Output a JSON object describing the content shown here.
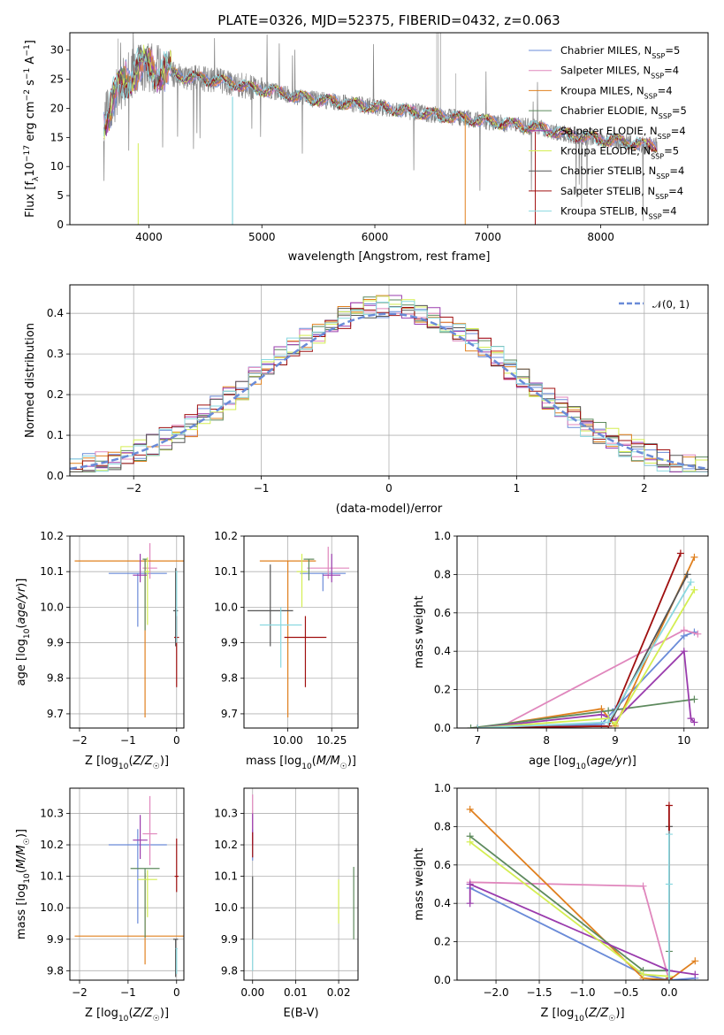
{
  "title": "PLATE=0326, MJD=52375, FIBERID=0432, z=0.063",
  "colors": {
    "chabrier_miles": "#6a8bd8",
    "salpeter_miles": "#e087bd",
    "kroupa_miles": "#e0801f",
    "chabrier_elodie": "#5e8a5e",
    "salpeter_elodie": "#9a3cad",
    "kroupa_elodie": "#d4ee52",
    "chabrier_stelib": "#555555",
    "salpeter_stelib": "#a01010",
    "kroupa_stelib": "#8ad8e0",
    "data": "#808080",
    "gaussian": "#6a8bd8"
  },
  "chart_data": [
    {
      "type": "line",
      "panel": "spectrum",
      "xlabel": "wavelength [Angstrom, rest frame]",
      "ylabel": "Flux [f_λ 10⁻¹⁷ erg cm⁻² s⁻¹ A⁻¹]",
      "xlim": [
        3300,
        8950
      ],
      "ylim": [
        0,
        33
      ],
      "xticks": [
        4000,
        5000,
        6000,
        7000,
        8000
      ],
      "yticks": [
        0,
        5,
        10,
        15,
        20,
        25,
        30
      ],
      "grid": false,
      "legend_position": "top-right",
      "legend": [
        {
          "key": "chabrier_miles",
          "label": "Chabrier MILES, N",
          "sub": "SSP",
          "tail": "=5"
        },
        {
          "key": "salpeter_miles",
          "label": "Salpeter MILES, N",
          "sub": "SSP",
          "tail": "=4"
        },
        {
          "key": "kroupa_miles",
          "label": "Kroupa MILES, N",
          "sub": "SSP",
          "tail": "=4"
        },
        {
          "key": "chabrier_elodie",
          "label": "Chabrier ELODIE, N",
          "sub": "SSP",
          "tail": "=5"
        },
        {
          "key": "salpeter_elodie",
          "label": "Salpeter ELODIE, N",
          "sub": "SSP",
          "tail": "=4"
        },
        {
          "key": "kroupa_elodie",
          "label": "Kroupa ELODIE, N",
          "sub": "SSP",
          "tail": "=5"
        },
        {
          "key": "chabrier_stelib",
          "label": "Chabrier STELIB, N",
          "sub": "SSP",
          "tail": "=4"
        },
        {
          "key": "salpeter_stelib",
          "label": "Salpeter STELIB, N",
          "sub": "SSP",
          "tail": "=4"
        },
        {
          "key": "kroupa_stelib",
          "label": "Kroupa STELIB, N",
          "sub": "SSP",
          "tail": "=4"
        }
      ],
      "continuum": {
        "x": [
          3600,
          3700,
          3800,
          3900,
          4000,
          4100,
          4300,
          4500,
          4700,
          4900,
          5100,
          5300,
          5500,
          5700,
          5900,
          6100,
          6300,
          6500,
          6700,
          6900,
          7100,
          7300,
          7500,
          7700,
          7900,
          8100,
          8300,
          8500
        ],
        "y": [
          18,
          22,
          25,
          27,
          27,
          26.5,
          25.5,
          25,
          24.5,
          23.5,
          23,
          22,
          21.5,
          21,
          20.5,
          20,
          19.5,
          19,
          18.5,
          18,
          17.5,
          17,
          16.5,
          15.5,
          15,
          14.5,
          14,
          13.5
        ]
      }
    },
    {
      "type": "line",
      "panel": "residual_distribution",
      "xlabel": "(data-model)/error",
      "ylabel": "Normed distribution",
      "xlim": [
        -2.5,
        2.5
      ],
      "ylim": [
        0,
        0.47
      ],
      "xticks": [
        -2,
        -1,
        0,
        1,
        2
      ],
      "yticks": [
        0.0,
        0.1,
        0.2,
        0.3,
        0.4
      ],
      "grid": true,
      "legend_position": "top-right",
      "legend_label": "𝒩(0, 1)",
      "bin_width": 0.1
    },
    {
      "type": "scatter",
      "panel": "age_vs_Z",
      "xlabel": "Z [log₁₀(Z/Z☉)]",
      "ylabel": "age [log₁₀(age/yr)]",
      "xlim": [
        -2.2,
        0.15
      ],
      "ylim": [
        9.66,
        10.2
      ],
      "xticks": [
        -2,
        -1,
        0
      ],
      "yticks": [
        9.7,
        9.8,
        9.9,
        10.0,
        10.1,
        10.2
      ],
      "grid": true,
      "points": [
        {
          "key": "chabrier_miles",
          "x": -0.8,
          "y": 10.095,
          "xerr": 0.6,
          "yerr": [
            0.15,
            0.0
          ]
        },
        {
          "key": "salpeter_miles",
          "x": -0.55,
          "y": 10.11,
          "xerr": 0.15,
          "yerr": [
            0.03,
            0.07
          ]
        },
        {
          "key": "kroupa_miles",
          "x": -0.65,
          "y": 10.13,
          "xerr": 1.45,
          "yerr": [
            0.44,
            0.0
          ]
        },
        {
          "key": "chabrier_elodie",
          "x": -0.65,
          "y": 10.135,
          "xerr": 0.05,
          "yerr": [
            0.2,
            0.0
          ]
        },
        {
          "key": "salpeter_elodie",
          "x": -0.75,
          "y": 10.09,
          "xerr": 0.15,
          "yerr": [
            0.02,
            0.06
          ]
        },
        {
          "key": "kroupa_elodie",
          "x": -0.6,
          "y": 10.1,
          "xerr": 0.05,
          "yerr": [
            0.15,
            0.04
          ]
        },
        {
          "key": "chabrier_stelib",
          "x": -0.02,
          "y": 9.99,
          "xerr": 0.05,
          "yerr": [
            0.1,
            0.12
          ]
        },
        {
          "key": "salpeter_stelib",
          "x": 0.0,
          "y": 9.915,
          "xerr": 0.05,
          "yerr": [
            0.14,
            0.06
          ]
        },
        {
          "key": "kroupa_stelib",
          "x": 0.0,
          "y": 10.1,
          "xerr": 0.02,
          "yerr": [
            0.2,
            0.0
          ]
        }
      ]
    },
    {
      "type": "scatter",
      "panel": "age_vs_mass",
      "xlabel": "mass [log₁₀(M/M☉)]",
      "ylabel": "",
      "xlim": [
        9.75,
        10.4
      ],
      "ylim": [
        9.66,
        10.2
      ],
      "xticks": [
        10.0,
        10.25
      ],
      "xticklabels": [
        "10.00",
        "10.25"
      ],
      "yticks": [
        9.7,
        9.8,
        9.9,
        10.0,
        10.1,
        10.2
      ],
      "grid": true,
      "points": [
        {
          "key": "chabrier_miles",
          "x": 10.2,
          "y": 10.095,
          "xerr": 0.13,
          "yerr": [
            0.05,
            0.0
          ]
        },
        {
          "key": "salpeter_miles",
          "x": 10.23,
          "y": 10.11,
          "xerr": 0.12,
          "yerr": [
            0.03,
            0.06
          ]
        },
        {
          "key": "kroupa_miles",
          "x": 10.0,
          "y": 10.13,
          "xerr": 0.16,
          "yerr": [
            0.44,
            0.0
          ]
        },
        {
          "key": "chabrier_elodie",
          "x": 10.12,
          "y": 10.135,
          "xerr": 0.03,
          "yerr": [
            0.06,
            0.0
          ]
        },
        {
          "key": "salpeter_elodie",
          "x": 10.25,
          "y": 10.09,
          "xerr": 0.05,
          "yerr": [
            0.02,
            0.06
          ]
        },
        {
          "key": "kroupa_elodie",
          "x": 10.08,
          "y": 10.1,
          "xerr": 0.03,
          "yerr": [
            0.1,
            0.05
          ]
        },
        {
          "key": "chabrier_stelib",
          "x": 9.9,
          "y": 9.99,
          "xerr": 0.13,
          "yerr": [
            0.1,
            0.13
          ]
        },
        {
          "key": "salpeter_stelib",
          "x": 10.1,
          "y": 9.915,
          "xerr": 0.12,
          "yerr": [
            0.14,
            0.06
          ]
        },
        {
          "key": "kroupa_stelib",
          "x": 9.96,
          "y": 9.95,
          "xerr": 0.12,
          "yerr": [
            0.12,
            0.05
          ]
        }
      ]
    },
    {
      "type": "line",
      "panel": "mass_weight_vs_age",
      "xlabel": "age [log₁₀(age/yr)]",
      "ylabel": "mass weight",
      "xlim": [
        6.7,
        10.35
      ],
      "ylim": [
        0,
        1.0
      ],
      "xticks": [
        7,
        8,
        9,
        10
      ],
      "yticks": [
        0.0,
        0.2,
        0.4,
        0.6,
        0.8,
        1.0
      ],
      "grid": true,
      "series": [
        {
          "key": "chabrier_miles",
          "x": [
            7.0,
            8.8,
            9.0,
            10.0,
            10.15
          ],
          "y": [
            0.0,
            0.02,
            0.1,
            0.48,
            0.5
          ]
        },
        {
          "key": "salpeter_miles",
          "x": [
            7.3,
            10.0,
            10.2
          ],
          "y": [
            0.0,
            0.51,
            0.49
          ]
        },
        {
          "key": "kroupa_miles",
          "x": [
            7.0,
            8.8,
            9.0,
            10.15
          ],
          "y": [
            0.0,
            0.1,
            0.01,
            0.89
          ]
        },
        {
          "key": "chabrier_elodie",
          "x": [
            6.9,
            8.9,
            10.15
          ],
          "y": [
            0.0,
            0.09,
            0.15
          ]
        },
        {
          "key": "salpeter_elodie",
          "x": [
            7.0,
            8.8,
            9.0,
            10.0,
            10.1,
            10.15
          ],
          "y": [
            0.0,
            0.07,
            0.04,
            0.4,
            0.05,
            0.03
          ]
        },
        {
          "key": "kroupa_elodie",
          "x": [
            7.0,
            8.9,
            9.0,
            10.15
          ],
          "y": [
            0.0,
            0.05,
            0.02,
            0.72
          ]
        },
        {
          "key": "chabrier_stelib",
          "x": [
            7.0,
            8.9,
            10.05
          ],
          "y": [
            0.0,
            0.01,
            0.8
          ]
        },
        {
          "key": "salpeter_stelib",
          "x": [
            7.0,
            8.9,
            9.95
          ],
          "y": [
            0.0,
            0.01,
            0.91
          ]
        },
        {
          "key": "kroupa_stelib",
          "x": [
            7.0,
            8.9,
            10.1
          ],
          "y": [
            0.0,
            0.03,
            0.76
          ]
        }
      ]
    },
    {
      "type": "scatter",
      "panel": "mass_vs_Z",
      "xlabel": "Z [log₁₀(Z/Z☉)]",
      "ylabel": "mass [log₁₀(M/M☉)]",
      "xlim": [
        -2.2,
        0.15
      ],
      "ylim": [
        9.77,
        10.38
      ],
      "xticks": [
        -2,
        -1,
        0
      ],
      "yticks": [
        9.8,
        9.9,
        10.0,
        10.1,
        10.2,
        10.3
      ],
      "grid": true,
      "points": [
        {
          "key": "chabrier_miles",
          "x": -0.8,
          "y": 10.2,
          "xerr": 0.6,
          "yerr": [
            0.25,
            0.05
          ]
        },
        {
          "key": "salpeter_miles",
          "x": -0.55,
          "y": 10.235,
          "xerr": 0.15,
          "yerr": [
            0.1,
            0.12
          ]
        },
        {
          "key": "kroupa_miles",
          "x": -0.65,
          "y": 9.91,
          "xerr": 1.45,
          "yerr": [
            0.09,
            0.2
          ]
        },
        {
          "key": "chabrier_elodie",
          "x": -0.65,
          "y": 10.125,
          "xerr": 0.3,
          "yerr": [
            0.22,
            0.0
          ]
        },
        {
          "key": "salpeter_elodie",
          "x": -0.75,
          "y": 10.215,
          "xerr": 0.15,
          "yerr": [
            0.06,
            0.08
          ]
        },
        {
          "key": "kroupa_elodie",
          "x": -0.6,
          "y": 10.09,
          "xerr": 0.2,
          "yerr": [
            0.12,
            0.03
          ]
        },
        {
          "key": "chabrier_stelib",
          "x": -0.02,
          "y": 9.9,
          "xerr": 0.05,
          "yerr": [
            0.12,
            0.0
          ]
        },
        {
          "key": "salpeter_stelib",
          "x": 0.0,
          "y": 10.1,
          "xerr": 0.04,
          "yerr": [
            0.05,
            0.12
          ]
        },
        {
          "key": "kroupa_stelib",
          "x": 0.0,
          "y": 9.87,
          "xerr": 0.02,
          "yerr": [
            0.08,
            0.0
          ]
        }
      ]
    },
    {
      "type": "scatter",
      "panel": "mass_vs_EBV",
      "xlabel": "E(B-V)",
      "ylabel": "",
      "xlim": [
        -0.002,
        0.0245
      ],
      "ylim": [
        9.77,
        10.38
      ],
      "xticks": [
        0.0,
        0.01,
        0.02
      ],
      "xticklabels": [
        "0.00",
        "0.01",
        "0.02"
      ],
      "yticks": [
        9.8,
        9.9,
        10.0,
        10.1,
        10.2,
        10.3
      ],
      "grid": true,
      "points": [
        {
          "key": "chabrier_miles",
          "x": 0.0,
          "y": 10.2,
          "xerr": 0,
          "yerr": [
            0.05,
            0.05
          ]
        },
        {
          "key": "salpeter_miles",
          "x": 0.0,
          "y": 10.3,
          "xerr": 0,
          "yerr": [
            0.05,
            0.06
          ]
        },
        {
          "key": "salpeter_elodie",
          "x": 0.0,
          "y": 10.25,
          "xerr": 0,
          "yerr": [
            0.05,
            0.05
          ]
        },
        {
          "key": "salpeter_stelib",
          "x": 0.0,
          "y": 10.2,
          "xerr": 0,
          "yerr": [
            0.04,
            0.04
          ]
        },
        {
          "key": "kroupa_stelib",
          "x": 0.0,
          "y": 9.9,
          "xerr": 0,
          "yerr": [
            0.1,
            0.0
          ]
        },
        {
          "key": "chabrier_stelib",
          "x": 0.0,
          "y": 10.0,
          "xerr": 0,
          "yerr": [
            0.1,
            0.1
          ]
        },
        {
          "key": "kroupa_elodie",
          "x": 0.02,
          "y": 10.02,
          "xerr": 0,
          "yerr": [
            0.07,
            0.07
          ]
        },
        {
          "key": "chabrier_elodie",
          "x": 0.0235,
          "y": 10.01,
          "xerr": 0,
          "yerr": [
            0.11,
            0.12
          ]
        }
      ]
    },
    {
      "type": "line",
      "panel": "mass_weight_vs_Z",
      "xlabel": "Z [log₁₀(Z/Z☉)]",
      "ylabel": "mass weight",
      "xlim": [
        -2.45,
        0.45
      ],
      "ylim": [
        0,
        1.0
      ],
      "xticks": [
        -2.0,
        -1.5,
        -1.0,
        -0.5,
        0.0
      ],
      "xticklabels": [
        "−2.0",
        "−1.5",
        "−1.0",
        "−0.5",
        "0.0"
      ],
      "yticks": [
        0.0,
        0.2,
        0.4,
        0.6,
        0.8,
        1.0
      ],
      "grid": true,
      "series": [
        {
          "key": "chabrier_miles",
          "x": [
            -2.3,
            -0.3,
            0.0,
            0.3
          ],
          "y": [
            0.48,
            0.03,
            0.0,
            0.01
          ]
        },
        {
          "key": "salpeter_miles",
          "x": [
            -2.3,
            -0.3,
            0.0
          ],
          "y": [
            0.51,
            0.49,
            0.0
          ]
        },
        {
          "key": "kroupa_miles",
          "x": [
            -2.3,
            -0.3,
            0.0,
            0.3
          ],
          "y": [
            0.89,
            0.01,
            0.0,
            0.1
          ]
        },
        {
          "key": "chabrier_elodie",
          "x": [
            -2.3,
            -0.3,
            0.0,
            0.0
          ],
          "y": [
            0.75,
            0.05,
            0.05,
            0.15
          ]
        },
        {
          "key": "salpeter_elodie",
          "x": [
            -2.3,
            -2.3,
            0.0,
            0.3
          ],
          "y": [
            0.4,
            0.5,
            0.05,
            0.03
          ]
        },
        {
          "key": "kroupa_elodie",
          "x": [
            -2.3,
            -0.3,
            0.0
          ],
          "y": [
            0.72,
            0.03,
            0.02
          ]
        },
        {
          "key": "chabrier_stelib",
          "x": [
            0.0,
            0.0
          ],
          "y": [
            0.8,
            0.0
          ]
        },
        {
          "key": "salpeter_stelib",
          "x": [
            0.0,
            0.0
          ],
          "y": [
            0.91,
            0.01
          ]
        },
        {
          "key": "kroupa_stelib",
          "x": [
            0.0,
            0.0,
            0.0
          ],
          "y": [
            0.76,
            0.5,
            0.0
          ]
        }
      ]
    }
  ]
}
